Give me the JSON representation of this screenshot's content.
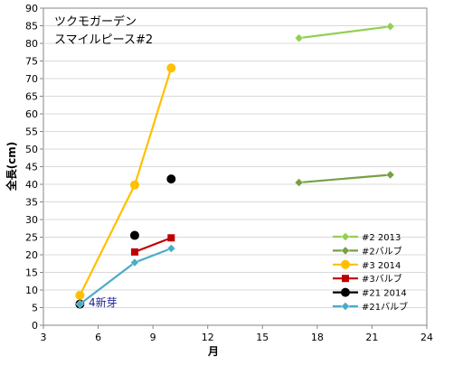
{
  "chart_data": {
    "type": "line",
    "title_lines": [
      "ツクモガーデン",
      "スマイルピース#2"
    ],
    "xlabel": "月",
    "ylabel": "全長(cm)",
    "xlim": [
      3,
      24
    ],
    "ylim": [
      0,
      90
    ],
    "x_ticks": [
      3,
      6,
      9,
      12,
      15,
      18,
      21,
      24
    ],
    "y_ticks": [
      0,
      5,
      10,
      15,
      20,
      25,
      30,
      35,
      40,
      45,
      50,
      55,
      60,
      65,
      70,
      75,
      80,
      85,
      90
    ],
    "grid": "horizontal",
    "legend_position": "bottom-right",
    "annotation": {
      "text": "4新芽",
      "x": 5,
      "y": 6.5
    },
    "series": [
      {
        "name": "#2 2013",
        "color": "#92d050",
        "marker": "diamond",
        "points": [
          [
            17,
            81.5
          ],
          [
            22,
            84.8
          ]
        ]
      },
      {
        "name": "#2バルブ",
        "color": "#77a045",
        "marker": "diamond",
        "points": [
          [
            17,
            40.5
          ],
          [
            22,
            42.7
          ]
        ]
      },
      {
        "name": "#3 2014",
        "color": "#ffc000",
        "marker": "circle",
        "points": [
          [
            5,
            8.5
          ],
          [
            8,
            39.8
          ],
          [
            10,
            73
          ]
        ]
      },
      {
        "name": "#3バルブ",
        "color": "#c00000",
        "marker": "square",
        "points": [
          [
            8,
            20.8
          ],
          [
            10,
            24.8
          ]
        ]
      },
      {
        "name": "#21 2014",
        "color": "#000000",
        "marker": "circle",
        "points": [
          [
            5,
            6
          ],
          [
            8,
            25.5
          ],
          [
            10,
            41.5
          ]
        ]
      },
      {
        "name": "#21バルブ",
        "color": "#4bacc6",
        "marker": "diamond",
        "points": [
          [
            5,
            6
          ],
          [
            8,
            17.8
          ],
          [
            10,
            21.8
          ]
        ]
      }
    ]
  }
}
